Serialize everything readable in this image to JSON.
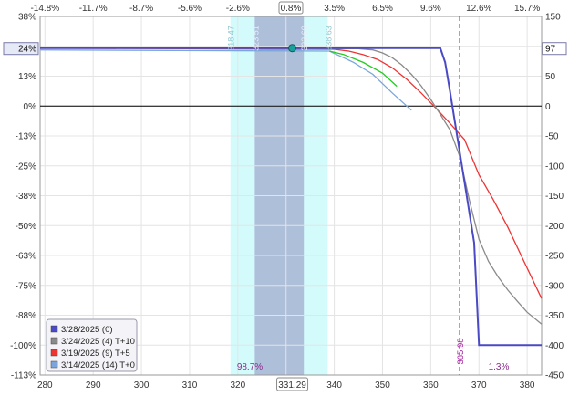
{
  "chart_data": {
    "type": "line",
    "x_ticks": [
      280,
      290,
      300,
      310,
      320,
      330,
      340,
      350,
      360,
      370,
      380
    ],
    "x_range": [
      279,
      383
    ],
    "top_pct_ticks": [
      "-14.8%",
      "-11.7%",
      "-8.7%",
      "-5.6%",
      "-2.6%",
      "0.8%",
      "3.5%",
      "6.5%",
      "9.6%",
      "12.6%",
      "15.7%"
    ],
    "top_pct_positions": [
      280,
      290,
      300,
      310,
      320,
      331,
      340,
      350,
      360,
      370,
      380
    ],
    "left_ticks": [
      "38%",
      "24%",
      "13%",
      "0%",
      "-13%",
      "-25%",
      "-38%",
      "-50%",
      "-63%",
      "-75%",
      "-88%",
      "-100%",
      "-113%"
    ],
    "right_ticks": [
      150,
      100,
      50,
      0,
      -50,
      -100,
      -150,
      -200,
      -250,
      -300,
      -350,
      -400,
      -450
    ],
    "y_range": [
      -450,
      150
    ],
    "current_price": "331.29",
    "current_pnl_label": "24%",
    "current_pnl_value": "97",
    "breakeven_label": "365.98",
    "breakeven_x": 365.98,
    "prob_left": "98.7%",
    "prob_right": "1.3%",
    "band_inner_labels": [
      "323.51",
      "333.69"
    ],
    "band_outer_labels": [
      "318.47",
      "338.63"
    ],
    "bands": {
      "inner": [
        323.51,
        333.69
      ],
      "outer": [
        318.47,
        338.63
      ]
    },
    "grid": true,
    "legend_position": "bottom-left",
    "series": [
      {
        "name": "3/28/2025 (0)",
        "color": "#4a4ac4",
        "x": [
          279,
          355,
          358,
          360,
          362,
          363,
          364,
          365,
          366,
          367,
          368,
          369,
          370,
          383
        ],
        "y": [
          97,
          97,
          97,
          97,
          97,
          73,
          25,
          -26,
          -76,
          -127,
          -178,
          -229,
          -400,
          -400
        ]
      },
      {
        "name": "3/24/2025 (4) T+10",
        "color": "#8a8a8a",
        "x": [
          279,
          345,
          348,
          350,
          352,
          354,
          356,
          358,
          360,
          362,
          364,
          366,
          368,
          370,
          372,
          374,
          376,
          378,
          380,
          383
        ],
        "y": [
          97,
          96,
          94,
          89,
          81,
          69,
          53,
          34,
          11,
          -14,
          -40,
          -84,
          -157,
          -223,
          -260,
          -286,
          -308,
          -327,
          -345,
          -365
        ]
      },
      {
        "name": "3/19/2025 (9) T+5",
        "color": "#ee3333",
        "x": [
          279,
          340,
          343,
          346,
          349,
          352,
          355,
          358,
          361,
          364,
          367,
          370,
          373,
          376,
          379,
          383
        ],
        "y": [
          97,
          95,
          92,
          86,
          78,
          64,
          45,
          22,
          -3,
          -29,
          -56,
          -115,
          -157,
          -203,
          -254,
          -322
        ]
      },
      {
        "name": "3/14/2025 (14) T+0",
        "color": "#7aa6dc",
        "x": [
          279,
          339,
          340,
          344,
          348,
          352,
          356
        ],
        "y": [
          94,
          92,
          88,
          73,
          53,
          22,
          -7
        ]
      }
    ],
    "green_segment": {
      "color": "#22cc22",
      "x": [
        339,
        342,
        346,
        350,
        353
      ],
      "y": [
        92,
        86,
        73,
        55,
        33
      ]
    }
  }
}
